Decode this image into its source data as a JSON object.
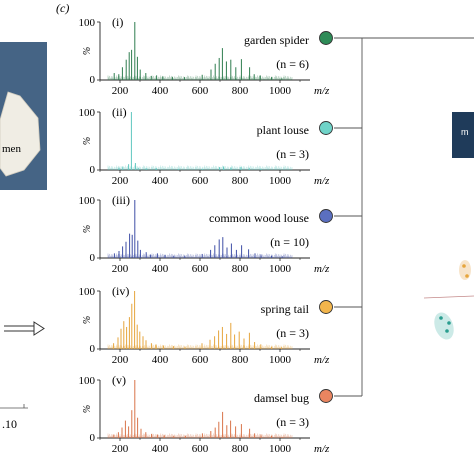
{
  "panel_label": "(c)",
  "left_photo_text": "men",
  "left_axis_fragment": ".10",
  "right_box_text": "m",
  "chart_data": [
    {
      "type": "line",
      "roman": "(i)",
      "species": "garden spider",
      "n_label": "(n = 6)",
      "color": "#2e7d4f",
      "marker_color": "#2e8b57",
      "ylabel": "%",
      "xlabel": "m/z",
      "yticks": [
        "0",
        "100"
      ],
      "xticks": [
        "200",
        "400",
        "600",
        "800",
        "1000"
      ],
      "xlim": [
        100,
        1150
      ],
      "ylim": [
        0,
        100
      ],
      "peaks": [
        [
          171,
          12
        ],
        [
          194,
          10
        ],
        [
          212,
          22
        ],
        [
          231,
          35
        ],
        [
          246,
          48
        ],
        [
          258,
          52
        ],
        [
          274,
          100
        ],
        [
          287,
          40
        ],
        [
          301,
          18
        ],
        [
          329,
          12
        ],
        [
          356,
          7
        ],
        [
          383,
          8
        ],
        [
          414,
          6
        ],
        [
          462,
          5
        ],
        [
          523,
          5
        ],
        [
          611,
          9
        ],
        [
          655,
          18
        ],
        [
          676,
          28
        ],
        [
          696,
          38
        ],
        [
          712,
          55
        ],
        [
          732,
          32
        ],
        [
          754,
          35
        ],
        [
          779,
          22
        ],
        [
          807,
          36
        ],
        [
          848,
          22
        ],
        [
          871,
          10
        ],
        [
          901,
          8
        ],
        [
          958,
          5
        ],
        [
          1009,
          3
        ]
      ]
    },
    {
      "type": "line",
      "roman": "(ii)",
      "species": "plant louse",
      "n_label": "(n = 3)",
      "color": "#5fc7bf",
      "marker_color": "#6fd3c8",
      "ylabel": "%",
      "xlabel": "m/z",
      "yticks": [
        "0",
        "100"
      ],
      "xticks": [
        "200",
        "400",
        "600",
        "800",
        "1000"
      ],
      "xlim": [
        100,
        1150
      ],
      "ylim": [
        0,
        100
      ],
      "peaks": [
        [
          195,
          4
        ],
        [
          214,
          6
        ],
        [
          243,
          10
        ],
        [
          257,
          100
        ],
        [
          277,
          12
        ],
        [
          291,
          4
        ],
        [
          331,
          3
        ],
        [
          381,
          3
        ],
        [
          492,
          2
        ],
        [
          612,
          2
        ],
        [
          698,
          5
        ],
        [
          718,
          6
        ],
        [
          755,
          4
        ],
        [
          805,
          5
        ],
        [
          846,
          3
        ],
        [
          905,
          2
        ]
      ]
    },
    {
      "type": "line",
      "roman": "(iii)",
      "species": "common wood louse",
      "n_label": "(n = 10)",
      "color": "#3f4fa6",
      "marker_color": "#5b6fc0",
      "ylabel": "%",
      "xlabel": "m/z",
      "yticks": [
        "0",
        "100"
      ],
      "xticks": [
        "200",
        "400",
        "600",
        "800",
        "1000"
      ],
      "xlim": [
        100,
        1150
      ],
      "ylim": [
        0,
        100
      ],
      "peaks": [
        [
          172,
          8
        ],
        [
          195,
          12
        ],
        [
          213,
          20
        ],
        [
          230,
          28
        ],
        [
          248,
          42
        ],
        [
          261,
          40
        ],
        [
          274,
          100
        ],
        [
          289,
          30
        ],
        [
          302,
          14
        ],
        [
          331,
          10
        ],
        [
          352,
          6
        ],
        [
          387,
          8
        ],
        [
          425,
          5
        ],
        [
          469,
          4
        ],
        [
          524,
          4
        ],
        [
          611,
          7
        ],
        [
          653,
          14
        ],
        [
          674,
          22
        ],
        [
          696,
          32
        ],
        [
          714,
          36
        ],
        [
          735,
          18
        ],
        [
          757,
          25
        ],
        [
          782,
          14
        ],
        [
          808,
          22
        ],
        [
          843,
          15
        ],
        [
          875,
          8
        ],
        [
          905,
          6
        ],
        [
          958,
          4
        ],
        [
          1011,
          3
        ]
      ]
    },
    {
      "type": "line",
      "roman": "(iv)",
      "species": "spring tail",
      "n_label": "(n = 3)",
      "color": "#e6a53c",
      "marker_color": "#f2b54c",
      "ylabel": "%",
      "xlabel": "m/z",
      "yticks": [
        "0",
        "100"
      ],
      "xticks": [
        "200",
        "400",
        "600",
        "800",
        "1000"
      ],
      "xlim": [
        100,
        1150
      ],
      "ylim": [
        0,
        100
      ],
      "peaks": [
        [
          168,
          10
        ],
        [
          190,
          20
        ],
        [
          205,
          35
        ],
        [
          219,
          48
        ],
        [
          233,
          38
        ],
        [
          247,
          55
        ],
        [
          259,
          78
        ],
        [
          273,
          100
        ],
        [
          286,
          42
        ],
        [
          299,
          30
        ],
        [
          315,
          22
        ],
        [
          330,
          15
        ],
        [
          357,
          10
        ],
        [
          380,
          8
        ],
        [
          417,
          6
        ],
        [
          468,
          5
        ],
        [
          525,
          4
        ],
        [
          610,
          10
        ],
        [
          650,
          16
        ],
        [
          673,
          22
        ],
        [
          693,
          32
        ],
        [
          712,
          38
        ],
        [
          733,
          26
        ],
        [
          754,
          45
        ],
        [
          773,
          25
        ],
        [
          796,
          30
        ],
        [
          820,
          18
        ],
        [
          847,
          28
        ],
        [
          873,
          12
        ],
        [
          904,
          8
        ],
        [
          958,
          4
        ],
        [
          1008,
          3
        ]
      ]
    },
    {
      "type": "line",
      "roman": "(v)",
      "species": "damsel bug",
      "n_label": "(n = 3)",
      "color": "#d9744a",
      "marker_color": "#e98560",
      "ylabel": "%",
      "xlabel": "m/z",
      "yticks": [
        "0",
        "100"
      ],
      "xticks": [
        "200",
        "400",
        "600",
        "800",
        "1000"
      ],
      "xlim": [
        100,
        1150
      ],
      "ylim": [
        0,
        100
      ],
      "peaks": [
        [
          169,
          6
        ],
        [
          192,
          10
        ],
        [
          210,
          18
        ],
        [
          227,
          30
        ],
        [
          243,
          20
        ],
        [
          259,
          48
        ],
        [
          274,
          100
        ],
        [
          288,
          35
        ],
        [
          305,
          16
        ],
        [
          329,
          10
        ],
        [
          358,
          7
        ],
        [
          388,
          6
        ],
        [
          421,
          5
        ],
        [
          469,
          4
        ],
        [
          527,
          4
        ],
        [
          612,
          8
        ],
        [
          654,
          12
        ],
        [
          676,
          18
        ],
        [
          694,
          28
        ],
        [
          713,
          45
        ],
        [
          734,
          22
        ],
        [
          753,
          30
        ],
        [
          778,
          20
        ],
        [
          807,
          24
        ],
        [
          848,
          16
        ],
        [
          873,
          8
        ],
        [
          905,
          6
        ],
        [
          958,
          4
        ],
        [
          1011,
          2
        ]
      ]
    }
  ]
}
